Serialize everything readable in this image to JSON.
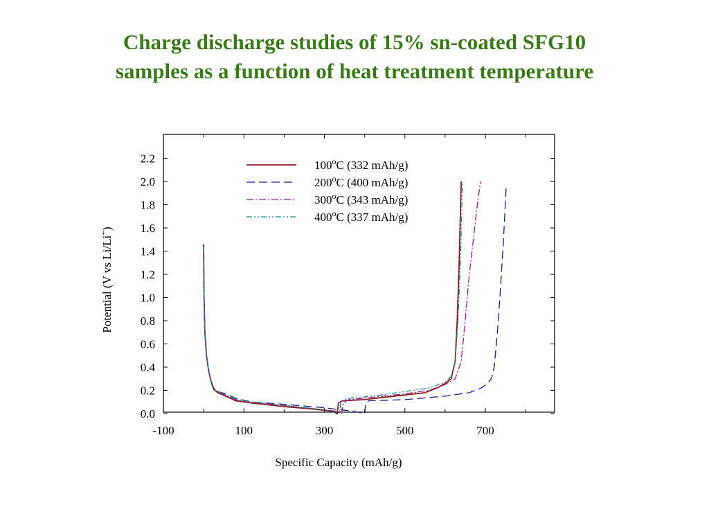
{
  "slide": {
    "title_line1": "Charge discharge studies of  15% sn-coated SFG10",
    "title_line2": "samples as a function of heat treatment temperature",
    "title_color": "#3b7a1a"
  },
  "chart_data": {
    "type": "line",
    "xlabel": "Specific Capacity (mAh/g)",
    "ylabel": "Potential (V vs Li/Li+)",
    "ylabel_parts": {
      "main": "Potential (V vs Li/Li",
      "sup": "+",
      "end": ")"
    },
    "xlim": [
      -100,
      900
    ],
    "ylim": [
      -0.02,
      2.4
    ],
    "x_ticks": [
      -100,
      100,
      300,
      500,
      700
    ],
    "x_minor_ticks": [
      0,
      200,
      400,
      600,
      800
    ],
    "y_ticks": [
      0.0,
      0.2,
      0.4,
      0.6,
      0.8,
      1.0,
      1.2,
      1.4,
      1.6,
      1.8,
      2.0,
      2.2
    ],
    "y_tick_labels": [
      "0.0",
      "0.2",
      "0.4",
      "0.6",
      "0.8",
      "1.0",
      "1.2",
      "1.4",
      "1.6",
      "1.8",
      "2.0",
      "2.2"
    ],
    "grid": false,
    "legend_position": "top-center",
    "series": [
      {
        "name": "100oC (332 mAh/g)",
        "legend": {
          "a": "100",
          "sup": "o",
          "b": "C (332 mAh/g)"
        },
        "color": "#8b1a1a",
        "dash": "solid",
        "discharge": [
          [
            0,
            1.46
          ],
          [
            1,
            1.0
          ],
          [
            3,
            0.7
          ],
          [
            7,
            0.5
          ],
          [
            12,
            0.38
          ],
          [
            18,
            0.28
          ],
          [
            25,
            0.21
          ],
          [
            35,
            0.18
          ],
          [
            55,
            0.15
          ],
          [
            80,
            0.11
          ],
          [
            120,
            0.09
          ],
          [
            200,
            0.06
          ],
          [
            270,
            0.04
          ],
          [
            320,
            0.02
          ],
          [
            332,
            0.0
          ]
        ],
        "charge": [
          [
            332,
            0.0
          ],
          [
            335,
            0.09
          ],
          [
            345,
            0.11
          ],
          [
            400,
            0.12
          ],
          [
            450,
            0.14
          ],
          [
            500,
            0.16
          ],
          [
            550,
            0.18
          ],
          [
            580,
            0.22
          ],
          [
            600,
            0.26
          ],
          [
            615,
            0.3
          ],
          [
            625,
            0.45
          ],
          [
            630,
            0.8
          ],
          [
            635,
            1.3
          ],
          [
            640,
            2.0
          ]
        ]
      },
      {
        "name": "200oC (400 mAh/g)",
        "legend": {
          "a": "200",
          "sup": "o",
          "b": "C (400 mAh/g)"
        },
        "color": "#1a1a8b",
        "dash": "12,6",
        "discharge": [
          [
            0,
            1.45
          ],
          [
            1,
            1.0
          ],
          [
            3,
            0.7
          ],
          [
            7,
            0.5
          ],
          [
            12,
            0.38
          ],
          [
            18,
            0.28
          ],
          [
            25,
            0.21
          ],
          [
            35,
            0.19
          ],
          [
            55,
            0.17
          ],
          [
            80,
            0.13
          ],
          [
            120,
            0.1
          ],
          [
            200,
            0.08
          ],
          [
            300,
            0.05
          ],
          [
            370,
            0.02
          ],
          [
            400,
            0.0
          ]
        ],
        "charge": [
          [
            400,
            0.0
          ],
          [
            403,
            0.09
          ],
          [
            410,
            0.11
          ],
          [
            500,
            0.12
          ],
          [
            600,
            0.15
          ],
          [
            660,
            0.18
          ],
          [
            690,
            0.22
          ],
          [
            705,
            0.26
          ],
          [
            715,
            0.3
          ],
          [
            722,
            0.4
          ],
          [
            730,
            0.7
          ],
          [
            738,
            1.1
          ],
          [
            745,
            1.5
          ],
          [
            752,
            1.97
          ]
        ]
      },
      {
        "name": "300oC (343 mAh/g)",
        "legend": {
          "a": "300",
          "sup": "o",
          "b": "C (343 mAh/g)"
        },
        "color": "#9b1a9b",
        "dash": "10,3,2,3",
        "discharge": [
          [
            0,
            1.44
          ],
          [
            1,
            1.0
          ],
          [
            3,
            0.7
          ],
          [
            7,
            0.5
          ],
          [
            12,
            0.38
          ],
          [
            18,
            0.29
          ],
          [
            25,
            0.22
          ],
          [
            35,
            0.19
          ],
          [
            55,
            0.16
          ],
          [
            80,
            0.12
          ],
          [
            120,
            0.1
          ],
          [
            200,
            0.07
          ],
          [
            280,
            0.04
          ],
          [
            330,
            0.02
          ],
          [
            343,
            0.0
          ]
        ],
        "charge": [
          [
            343,
            0.0
          ],
          [
            347,
            0.09
          ],
          [
            360,
            0.12
          ],
          [
            420,
            0.14
          ],
          [
            500,
            0.17
          ],
          [
            560,
            0.2
          ],
          [
            600,
            0.25
          ],
          [
            625,
            0.3
          ],
          [
            640,
            0.45
          ],
          [
            650,
            0.8
          ],
          [
            660,
            1.2
          ],
          [
            670,
            1.5
          ],
          [
            680,
            1.8
          ],
          [
            688,
            2.0
          ]
        ]
      },
      {
        "name": "400oC (337 mAh/g)",
        "legend": {
          "a": "400",
          "sup": "o",
          "b": "C (337 mAh/g)"
        },
        "color": "#1a8b8b",
        "dash": "8,3,2,3,2,3",
        "discharge": [
          [
            0,
            1.43
          ],
          [
            1,
            1.0
          ],
          [
            3,
            0.7
          ],
          [
            7,
            0.5
          ],
          [
            12,
            0.38
          ],
          [
            18,
            0.29
          ],
          [
            25,
            0.22
          ],
          [
            35,
            0.19
          ],
          [
            55,
            0.16
          ],
          [
            80,
            0.12
          ],
          [
            120,
            0.1
          ],
          [
            200,
            0.07
          ],
          [
            280,
            0.04
          ],
          [
            325,
            0.02
          ],
          [
            337,
            0.0
          ]
        ],
        "charge": [
          [
            337,
            0.0
          ],
          [
            341,
            0.09
          ],
          [
            355,
            0.13
          ],
          [
            420,
            0.15
          ],
          [
            500,
            0.19
          ],
          [
            560,
            0.22
          ],
          [
            600,
            0.27
          ],
          [
            615,
            0.32
          ],
          [
            625,
            0.45
          ],
          [
            632,
            0.8
          ],
          [
            638,
            1.3
          ],
          [
            643,
            2.0
          ]
        ]
      }
    ]
  }
}
